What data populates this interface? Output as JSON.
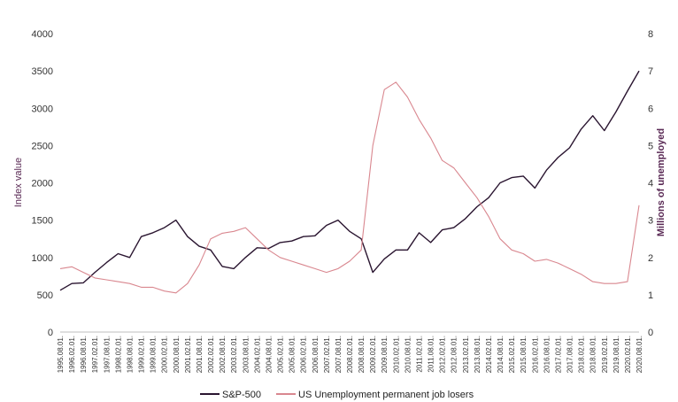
{
  "chart_data": {
    "type": "line",
    "title": "",
    "ylabel": "Index value",
    "y2label": "Millions of unemployed",
    "ylim": [
      0,
      4000
    ],
    "y2lim": [
      0,
      8
    ],
    "yticks": [
      "0",
      "500",
      "1000",
      "1500",
      "2000",
      "2500",
      "3000",
      "3500",
      "4000"
    ],
    "y2ticks": [
      "0",
      "1",
      "2",
      "3",
      "4",
      "5",
      "6",
      "7",
      "8"
    ],
    "grid": false,
    "legend_position": "bottom-center",
    "x_labels": [
      "1995.08.01.",
      "1996.02.01.",
      "1996.08.01.",
      "1997.02.01.",
      "1997.08.01.",
      "1998.02.01.",
      "1998.08.01.",
      "1999.02.01.",
      "1999.08.01.",
      "2000.02.01.",
      "2000.08.01.",
      "2001.02.01.",
      "2001.08.01.",
      "2002.02.01.",
      "2002.08.01.",
      "2003.02.01.",
      "2003.08.01.",
      "2004.02.01.",
      "2004.08.01.",
      "2005.02.01.",
      "2005.08.01.",
      "2006.02.01.",
      "2006.08.01.",
      "2007.02.01.",
      "2007.08.01.",
      "2008.02.01.",
      "2008.08.01.",
      "2009.02.01.",
      "2009.08.01.",
      "2010.02.01.",
      "2010.08.01.",
      "2011.02.01.",
      "2011.08.01.",
      "2012.02.01.",
      "2012.08.01.",
      "2013.02.01.",
      "2013.08.01.",
      "2014.02.01.",
      "2014.08.01.",
      "2015.02.01.",
      "2015.08.01.",
      "2016.02.01.",
      "2016.08.01.",
      "2017.02.01.",
      "2017.08.01.",
      "2018.02.01.",
      "2018.08.01.",
      "2019.02.01.",
      "2019.08.01.",
      "2020.02.01.",
      "2020.08.01."
    ],
    "x": [
      "1995.08.01.",
      "1996.02.01.",
      "1996.08.01.",
      "1997.02.01.",
      "1997.08.01.",
      "1998.02.01.",
      "1998.08.01.",
      "1999.02.01.",
      "1999.08.01.",
      "2000.02.01.",
      "2000.08.01.",
      "2001.02.01.",
      "2001.08.01.",
      "2002.02.01.",
      "2002.08.01.",
      "2003.02.01.",
      "2003.08.01.",
      "2004.02.01.",
      "2004.08.01.",
      "2005.02.01.",
      "2005.08.01.",
      "2006.02.01.",
      "2006.08.01.",
      "2007.02.01.",
      "2007.08.01.",
      "2008.02.01.",
      "2008.08.01.",
      "2009.02.01.",
      "2009.08.01.",
      "2010.02.01.",
      "2010.08.01.",
      "2011.02.01.",
      "2011.08.01.",
      "2012.02.01.",
      "2012.08.01.",
      "2013.02.01.",
      "2013.08.01.",
      "2014.02.01.",
      "2014.08.01.",
      "2015.02.01.",
      "2015.08.01.",
      "2016.02.01.",
      "2016.08.01.",
      "2017.02.01.",
      "2017.08.01.",
      "2018.02.01.",
      "2018.08.01.",
      "2019.02.01.",
      "2019.08.01.",
      "2020.02.01.",
      "2020.08.01."
    ],
    "series": [
      {
        "name": "S&P-500",
        "axis": "left",
        "color": "#2a1530",
        "values": [
          560,
          650,
          660,
          800,
          930,
          1050,
          1000,
          1280,
          1330,
          1400,
          1500,
          1280,
          1150,
          1100,
          880,
          850,
          1000,
          1130,
          1120,
          1200,
          1220,
          1280,
          1290,
          1430,
          1500,
          1350,
          1250,
          800,
          980,
          1100,
          1100,
          1330,
          1200,
          1370,
          1400,
          1520,
          1680,
          1800,
          2000,
          2070,
          2090,
          1930,
          2170,
          2340,
          2470,
          2720,
          2900,
          2700,
          2950,
          3230,
          3500
        ]
      },
      {
        "name": "US Unemployment permanent job losers",
        "axis": "right",
        "color": "#d9878f",
        "values": [
          1.7,
          1.75,
          1.6,
          1.45,
          1.4,
          1.35,
          1.3,
          1.2,
          1.2,
          1.1,
          1.05,
          1.3,
          1.8,
          2.5,
          2.65,
          2.7,
          2.8,
          2.5,
          2.2,
          2.0,
          1.9,
          1.8,
          1.7,
          1.6,
          1.7,
          1.9,
          2.2,
          5.0,
          6.5,
          6.7,
          6.3,
          5.7,
          5.2,
          4.6,
          4.4,
          4.0,
          3.6,
          3.1,
          2.5,
          2.2,
          2.1,
          1.9,
          1.95,
          1.85,
          1.7,
          1.55,
          1.35,
          1.3,
          1.3,
          1.35,
          3.4
        ]
      }
    ]
  }
}
